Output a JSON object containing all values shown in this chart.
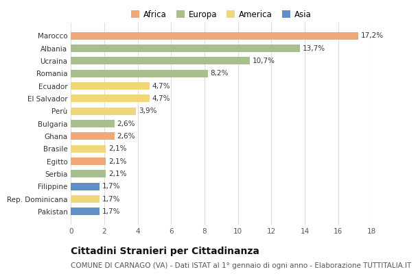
{
  "countries": [
    "Marocco",
    "Albania",
    "Ucraina",
    "Romania",
    "Ecuador",
    "El Salvador",
    "Perù",
    "Bulgaria",
    "Ghana",
    "Brasile",
    "Egitto",
    "Serbia",
    "Filippine",
    "Rep. Dominicana",
    "Pakistan"
  ],
  "values": [
    17.2,
    13.7,
    10.7,
    8.2,
    4.7,
    4.7,
    3.9,
    2.6,
    2.6,
    2.1,
    2.1,
    2.1,
    1.7,
    1.7,
    1.7
  ],
  "continents": [
    "Africa",
    "Europa",
    "Europa",
    "Europa",
    "America",
    "America",
    "America",
    "Europa",
    "Africa",
    "America",
    "Africa",
    "Europa",
    "Asia",
    "America",
    "Asia"
  ],
  "continent_colors": {
    "Africa": "#F0A878",
    "Europa": "#A8BE8C",
    "America": "#F0D878",
    "Asia": "#6090C8"
  },
  "legend_order": [
    "Africa",
    "Europa",
    "America",
    "Asia"
  ],
  "title": "Cittadini Stranieri per Cittadinanza",
  "subtitle": "COMUNE DI CARNAGO (VA) - Dati ISTAT al 1° gennaio di ogni anno - Elaborazione TUTTITALIA.IT",
  "xlim": [
    0,
    18
  ],
  "xticks": [
    0,
    2,
    4,
    6,
    8,
    10,
    12,
    14,
    16,
    18
  ],
  "background_color": "#ffffff",
  "grid_color": "#dddddd",
  "bar_height": 0.6,
  "title_fontsize": 10,
  "subtitle_fontsize": 7.5,
  "label_fontsize": 7.5,
  "tick_fontsize": 7.5,
  "legend_fontsize": 8.5
}
